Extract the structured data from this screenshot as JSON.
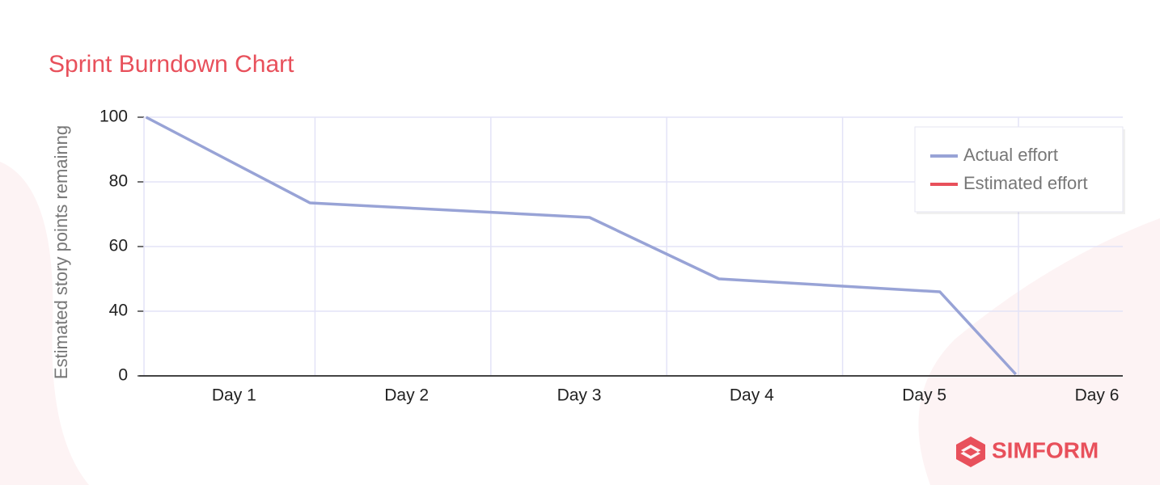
{
  "chart_data": {
    "type": "line",
    "title": "Sprint Burndown Chart",
    "y_label": "Estimated story points remainng",
    "x": [
      0.49,
      1.44,
      3.06,
      3.81,
      5.09,
      5.53
    ],
    "series": [
      {
        "name": "Actual effort",
        "color": "#98a3d6",
        "values": [
          100,
          73.5,
          69,
          50,
          46,
          1
        ]
      },
      {
        "name": "Estimated effort",
        "color": "#e8505b",
        "values": [
          null,
          null,
          null,
          null,
          null,
          null
        ]
      }
    ],
    "xlim": [
      0.45,
      6.15
    ],
    "xticks": [
      {
        "value": 1,
        "label": "Day 1"
      },
      {
        "value": 2,
        "label": "Day 2"
      },
      {
        "value": 3,
        "label": "Day 3"
      },
      {
        "value": 4,
        "label": "Day 4"
      },
      {
        "value": 5,
        "label": "Day 5"
      },
      {
        "value": 6,
        "label": "Day 6"
      }
    ],
    "ylim": [
      0,
      100
    ],
    "yticks": [
      100,
      80,
      60,
      40,
      0
    ],
    "grid": true,
    "legend": "top-right",
    "brand": "SIMFORM"
  }
}
